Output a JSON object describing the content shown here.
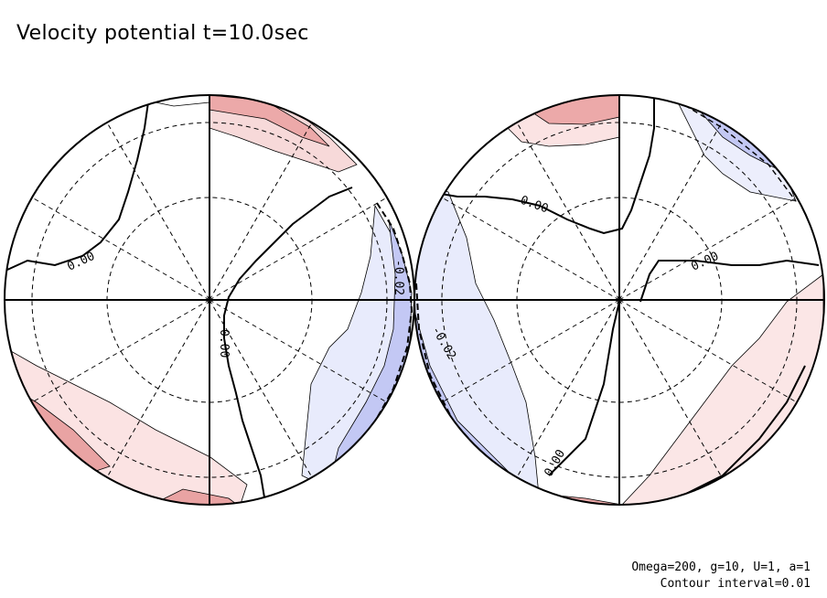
{
  "title": "Velocity potential t=10.0sec",
  "footer": {
    "params": "Omega=200, g=10, U=1, a=1",
    "interval": "Contour interval=0.01"
  },
  "colors": {
    "positive_shade": "#f4c9c9",
    "positive_shade_strong": "#e58a8a",
    "negative_shade": "#e6e8fb",
    "negative_shade_strong": "#a9afee",
    "contour": "#000000"
  },
  "contour_labels": {
    "left_zero_a": "0.00",
    "left_zero_b": "0.00",
    "left_neg": "-0.02",
    "right_zero_a": "0.00",
    "right_zero_b": "0.00",
    "right_zero_c": "0.00",
    "right_neg": "-0.02"
  }
}
